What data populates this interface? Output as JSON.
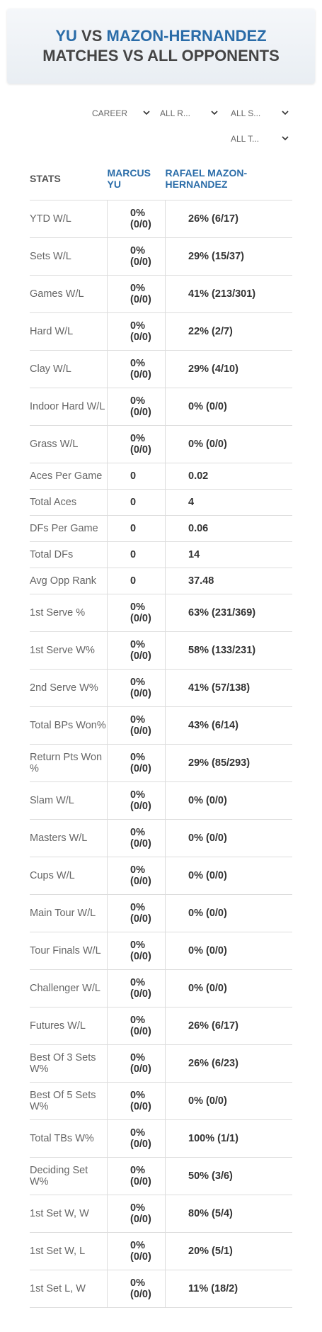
{
  "header": {
    "title_part1": "YU",
    "title_vs": "VS",
    "title_part2": "MAZON-HERNANDEZ",
    "subtitle": "MATCHES VS ALL OPPONENTS"
  },
  "filters": [
    "CAREER",
    "ALL R...",
    "ALL S...",
    "ALL T..."
  ],
  "table": {
    "columns": [
      "STATS",
      "MARCUS YU",
      "RAFAEL MAZON-HERNANDEZ"
    ],
    "rows": [
      [
        "YTD W/L",
        "0% (0/0)",
        "26% (6/17)"
      ],
      [
        "Sets W/L",
        "0% (0/0)",
        "29% (15/37)"
      ],
      [
        "Games W/L",
        "0% (0/0)",
        "41% (213/301)"
      ],
      [
        "Hard W/L",
        "0% (0/0)",
        "22% (2/7)"
      ],
      [
        "Clay W/L",
        "0% (0/0)",
        "29% (4/10)"
      ],
      [
        "Indoor Hard W/L",
        "0% (0/0)",
        "0% (0/0)"
      ],
      [
        "Grass W/L",
        "0% (0/0)",
        "0% (0/0)"
      ],
      [
        "Aces Per Game",
        "0",
        "0.02"
      ],
      [
        "Total Aces",
        "0",
        "4"
      ],
      [
        "DFs Per Game",
        "0",
        "0.06"
      ],
      [
        "Total DFs",
        "0",
        "14"
      ],
      [
        "Avg Opp Rank",
        "0",
        "37.48"
      ],
      [
        "1st Serve %",
        "0% (0/0)",
        "63% (231/369)"
      ],
      [
        "1st Serve W%",
        "0% (0/0)",
        "58% (133/231)"
      ],
      [
        "2nd Serve W%",
        "0% (0/0)",
        "41% (57/138)"
      ],
      [
        "Total BPs Won%",
        "0% (0/0)",
        "43% (6/14)"
      ],
      [
        "Return Pts Won %",
        "0% (0/0)",
        "29% (85/293)"
      ],
      [
        "Slam W/L",
        "0% (0/0)",
        "0% (0/0)"
      ],
      [
        "Masters W/L",
        "0% (0/0)",
        "0% (0/0)"
      ],
      [
        "Cups W/L",
        "0% (0/0)",
        "0% (0/0)"
      ],
      [
        "Main Tour W/L",
        "0% (0/0)",
        "0% (0/0)"
      ],
      [
        "Tour Finals W/L",
        "0% (0/0)",
        "0% (0/0)"
      ],
      [
        "Challenger W/L",
        "0% (0/0)",
        "0% (0/0)"
      ],
      [
        "Futures W/L",
        "0% (0/0)",
        "26% (6/17)"
      ],
      [
        "Best Of 3 Sets W%",
        "0% (0/0)",
        "26% (6/23)"
      ],
      [
        "Best Of 5 Sets W%",
        "0% (0/0)",
        "0% (0/0)"
      ],
      [
        "Total TBs W%",
        "0% (0/0)",
        "100% (1/1)"
      ],
      [
        "Deciding Set W%",
        "0% (0/0)",
        "50% (3/6)"
      ],
      [
        "1st Set W, W",
        "0% (0/0)",
        "80% (5/4)"
      ],
      [
        "1st Set W, L",
        "0% (0/0)",
        "20% (5/1)"
      ],
      [
        "1st Set L, W",
        "0% (0/0)",
        "11% (18/2)"
      ]
    ]
  }
}
